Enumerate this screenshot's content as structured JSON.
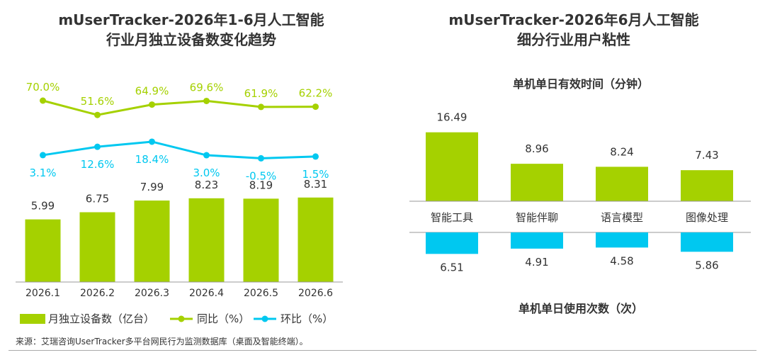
{
  "left_chart": {
    "title_line1": "mUserTracker-2026年1-6月人工智能",
    "title_line2": "行业月独立设备数变化趋势"
  },
  "right_chart": {
    "title_line1": "mUserTracker-2026年6月人工智能",
    "title_line2": "细分行业用户粘性"
  },
  "source": "来源：艾瑞咨询UserTracker多平台网民行为监测数据库（桌面及智能终端）。",
  "colors": {
    "green": "#a5d100",
    "cyan": "#00c8f0",
    "text": "#333333",
    "axis": "#999999"
  },
  "chart_data": [
    {
      "type": "bar",
      "categories": [
        "2026.1",
        "2026.2",
        "2026.3",
        "2026.4",
        "2026.5",
        "2026.6"
      ],
      "series": [
        {
          "name": "月独立设备数（亿台）",
          "type": "bar",
          "values": [
            5.99,
            6.75,
            7.99,
            8.23,
            8.19,
            8.31
          ],
          "labels": [
            "5.99",
            "6.75",
            "7.99",
            "8.23",
            "8.19",
            "8.31"
          ]
        },
        {
          "name": "同比（%）",
          "type": "line",
          "values": [
            70.0,
            51.6,
            64.9,
            69.6,
            61.9,
            62.2
          ],
          "labels": [
            "70.0%",
            "51.6%",
            "64.9%",
            "69.6%",
            "61.9%",
            "62.2%"
          ]
        },
        {
          "name": "环比（%）",
          "type": "line",
          "values": [
            3.1,
            12.6,
            18.4,
            3.0,
            -0.5,
            1.5
          ],
          "labels": [
            "3.1%",
            "12.6%",
            "18.4%",
            "3.0%",
            "-0.5%",
            "1.5%"
          ]
        }
      ],
      "legend": "bottom"
    },
    {
      "type": "bar",
      "categories": [
        "智能工具",
        "智能伴聊",
        "语言模型",
        "图像处理"
      ],
      "series": [
        {
          "name": "单机单日有效时间（分钟）",
          "values": [
            16.49,
            8.96,
            8.24,
            7.43
          ],
          "labels": [
            "16.49",
            "8.96",
            "8.24",
            "7.43"
          ]
        },
        {
          "name": "单机单日使用次数（次）",
          "values": [
            6.51,
            4.91,
            4.58,
            5.86
          ],
          "labels": [
            "6.51",
            "4.91",
            "4.58",
            "5.86"
          ]
        }
      ]
    }
  ]
}
